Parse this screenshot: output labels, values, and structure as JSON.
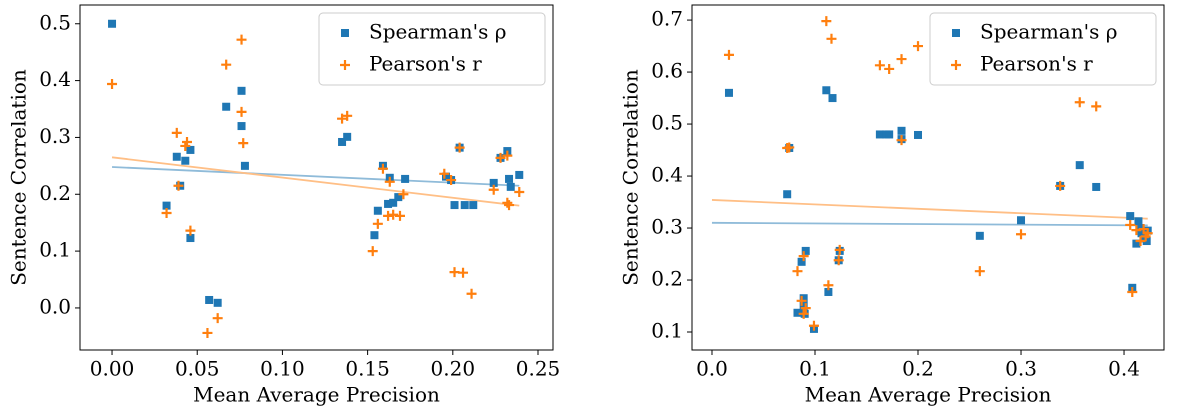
{
  "chart_data": [
    {
      "type": "scatter",
      "xlabel": "Mean Average Precision",
      "ylabel": "Sentence Correlation",
      "xlim": [
        -0.0188,
        0.2588
      ],
      "ylim": [
        -0.074,
        0.533
      ],
      "xticks": [
        {
          "value": 0,
          "label": "0.00"
        },
        0.05,
        {
          "value": 0.1,
          "label": "0.10"
        },
        0.15,
        {
          "value": 0.2,
          "label": "0.20"
        },
        0.25
      ],
      "yticks": [
        {
          "value": 0,
          "label": "0.0"
        },
        0.1,
        0.2,
        0.3,
        0.4,
        0.5
      ],
      "legend": "upper right",
      "series": [
        {
          "name": "Spearman's ρ",
          "color": "#1f77b4",
          "marker": "square",
          "x": [
            0,
            0.032,
            0.038,
            0.04,
            0.043,
            0.046,
            0.046,
            0.057,
            0.062,
            0.067,
            0.076,
            0.076,
            0.078,
            0.135,
            0.138,
            0.154,
            0.156,
            0.159,
            0.162,
            0.163,
            0.165,
            0.168,
            0.172,
            0.196,
            0.199,
            0.201,
            0.204,
            0.207,
            0.212,
            0.224,
            0.228,
            0.232,
            0.233,
            0.234,
            0.239
          ],
          "values": [
            0.5,
            0.18,
            0.266,
            0.215,
            0.259,
            0.278,
            0.123,
            0.014,
            0.009,
            0.354,
            0.382,
            0.32,
            0.25,
            0.292,
            0.301,
            0.128,
            0.171,
            0.25,
            0.183,
            0.229,
            0.185,
            0.195,
            0.227,
            0.231,
            0.225,
            0.181,
            0.282,
            0.181,
            0.181,
            0.22,
            0.264,
            0.276,
            0.227,
            0.213,
            0.234
          ],
          "fit": {
            "x": [
              0,
              0.239
            ],
            "values": [
              0.248,
              0.215
            ],
            "color": "#8fbbd9"
          }
        },
        {
          "name": "Pearson's r",
          "color": "#ff7f0e",
          "marker": "plus",
          "x": [
            0,
            0.032,
            0.038,
            0.039,
            0.043,
            0.044,
            0.046,
            0.056,
            0.062,
            0.067,
            0.076,
            0.076,
            0.077,
            0.135,
            0.138,
            0.153,
            0.156,
            0.159,
            0.162,
            0.163,
            0.165,
            0.169,
            0.171,
            0.195,
            0.199,
            0.201,
            0.204,
            0.206,
            0.211,
            0.224,
            0.228,
            0.232,
            0.232,
            0.233,
            0.239
          ],
          "values": [
            0.394,
            0.167,
            0.308,
            0.215,
            0.285,
            0.292,
            0.136,
            -0.044,
            -0.018,
            0.428,
            0.472,
            0.345,
            0.29,
            0.333,
            0.338,
            0.1,
            0.148,
            0.245,
            0.162,
            0.222,
            0.164,
            0.162,
            0.2,
            0.236,
            0.225,
            0.063,
            0.282,
            0.062,
            0.025,
            0.208,
            0.264,
            0.268,
            0.185,
            0.181,
            0.204
          ],
          "fit": {
            "x": [
              0,
              0.239
            ],
            "values": [
              0.265,
              0.18
            ],
            "color": "#ffbf86"
          }
        }
      ]
    },
    {
      "type": "scatter",
      "xlabel": "Mean Average Precision",
      "ylabel": "Sentence Correlation",
      "xlim": [
        -0.0194,
        0.4388
      ],
      "ylim": [
        0.0654,
        0.729
      ],
      "xticks": [
        {
          "value": 0,
          "label": "0.0"
        },
        0.1,
        0.2,
        0.3,
        0.4
      ],
      "yticks": [
        0.1,
        0.2,
        0.3,
        0.4,
        0.5,
        0.6,
        0.7
      ],
      "legend": "upper right",
      "series": [
        {
          "name": "Spearman's ρ",
          "color": "#1f77b4",
          "marker": "square",
          "x": [
            0.0165,
            0.073,
            0.075,
            0.083,
            0.087,
            0.089,
            0.089,
            0.09,
            0.091,
            0.099,
            0.111,
            0.113,
            0.117,
            0.123,
            0.124,
            0.163,
            0.169,
            0.172,
            0.184,
            0.184,
            0.2,
            0.26,
            0.3,
            0.338,
            0.357,
            0.373,
            0.406,
            0.408,
            0.412,
            0.414,
            0.416,
            0.417,
            0.42,
            0.422,
            0.423
          ],
          "values": [
            0.56,
            0.365,
            0.454,
            0.137,
            0.235,
            0.165,
            0.15,
            0.135,
            0.256,
            0.106,
            0.565,
            0.177,
            0.55,
            0.238,
            0.256,
            0.48,
            0.48,
            0.48,
            0.487,
            0.471,
            0.479,
            0.285,
            0.315,
            0.381,
            0.421,
            0.379,
            0.323,
            0.185,
            0.27,
            0.313,
            0.3,
            0.29,
            0.28,
            0.275,
            0.295
          ],
          "fit": {
            "x": [
              0,
              0.423
            ],
            "values": [
              0.31,
              0.305
            ],
            "color": "#8fbbd9"
          }
        },
        {
          "name": "Pearson's r",
          "color": "#ff7f0e",
          "marker": "plus",
          "x": [
            0.0165,
            0.073,
            0.075,
            0.083,
            0.087,
            0.089,
            0.089,
            0.091,
            0.099,
            0.111,
            0.113,
            0.116,
            0.123,
            0.124,
            0.163,
            0.172,
            0.184,
            0.184,
            0.2,
            0.26,
            0.3,
            0.338,
            0.357,
            0.373,
            0.406,
            0.408,
            0.412,
            0.416,
            0.419,
            0.421,
            0.423
          ],
          "values": [
            0.633,
            0.454,
            0.455,
            0.217,
            0.16,
            0.246,
            0.135,
            0.146,
            0.112,
            0.698,
            0.19,
            0.664,
            0.238,
            0.258,
            0.613,
            0.606,
            0.625,
            0.469,
            0.65,
            0.217,
            0.288,
            0.381,
            0.542,
            0.534,
            0.306,
            0.177,
            0.296,
            0.275,
            0.298,
            0.284,
            0.29
          ],
          "fit": {
            "x": [
              0,
              0.423
            ],
            "values": [
              0.354,
              0.318
            ],
            "color": "#ffbf86"
          }
        }
      ]
    }
  ]
}
